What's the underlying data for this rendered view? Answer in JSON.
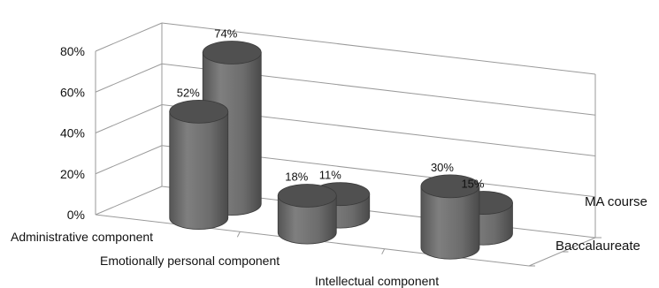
{
  "chart_data": {
    "type": "bar",
    "style": "3d-cylinder",
    "categories": [
      "Administrative component",
      "Emotionally personal component",
      "Intellectual component"
    ],
    "series": [
      {
        "name": "Baccalaureate",
        "values": [
          52,
          18,
          30
        ],
        "labels": [
          "52%",
          "18%",
          "30%"
        ]
      },
      {
        "name": "MA course",
        "values": [
          74,
          11,
          15
        ],
        "labels": [
          "74%",
          "11%",
          "15%"
        ]
      }
    ],
    "y_ticks": [
      "0%",
      "20%",
      "40%",
      "60%",
      "80%"
    ],
    "ylim": [
      0,
      80
    ],
    "grid": true,
    "bar_color": "#6d6d6d",
    "bar_top_color": "#505050",
    "gridline_color": "#9a9a9a",
    "title": "",
    "xlabel": "",
    "ylabel": ""
  }
}
